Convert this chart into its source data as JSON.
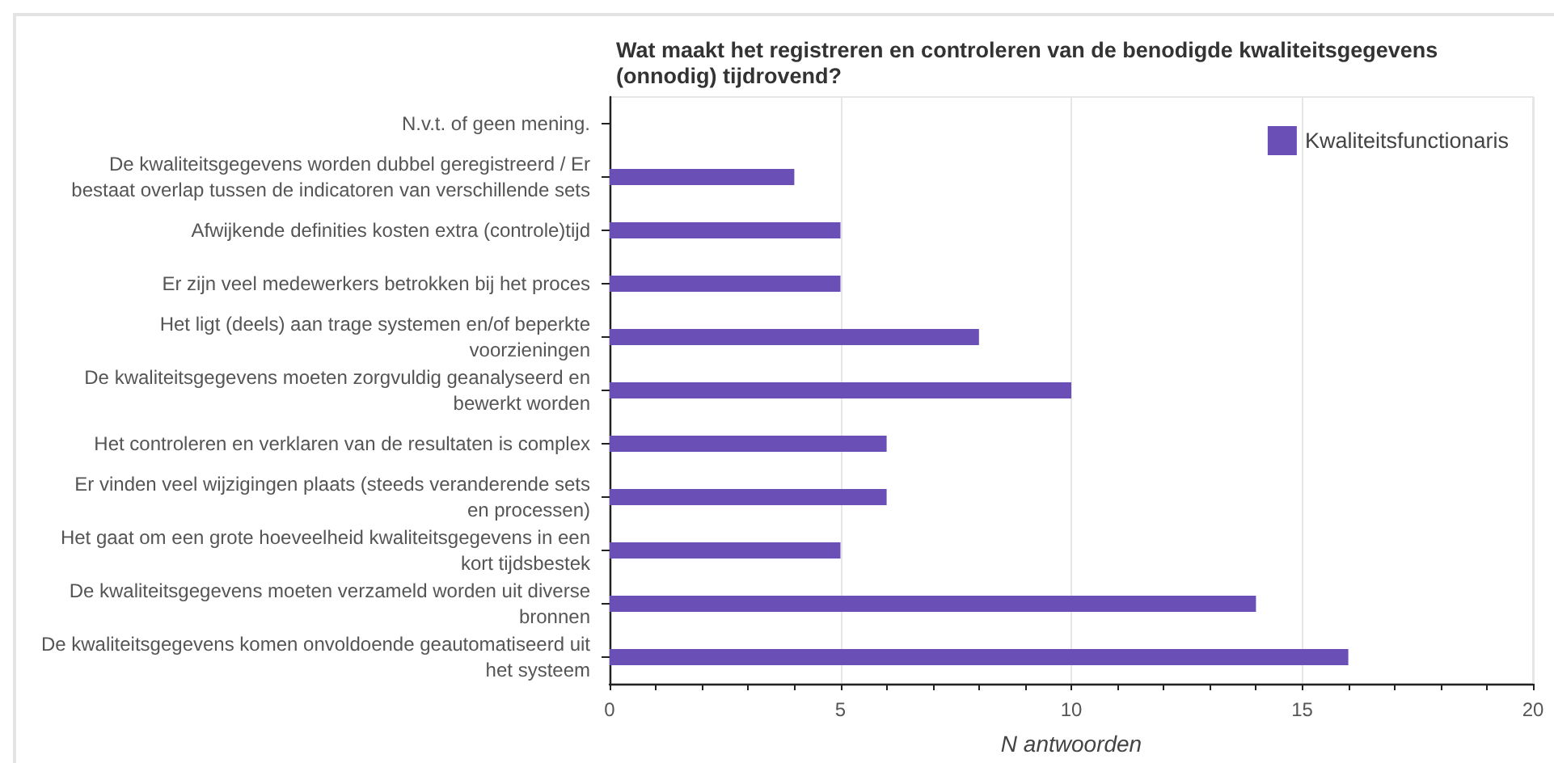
{
  "chart_data": {
    "type": "bar",
    "orientation": "horizontal",
    "title": "Wat maakt het registreren en controleren van de benodigde kwaliteitsgegevens (onnodig) tijdrovend?",
    "xlabel": "N antwoorden",
    "categories": [
      "N.v.t. of geen mening.",
      "De kwaliteitsgegevens worden dubbel geregistreerd / Er bestaat overlap tussen de indicatoren van verschillende sets",
      "Afwijkende definities kosten extra (controle)tijd",
      "Er zijn veel medewerkers betrokken bij het proces",
      "Het ligt (deels) aan trage systemen en/of beperkte voorzieningen",
      "De kwaliteitsgegevens moeten zorgvuldig geanalyseerd en bewerkt worden",
      "Het controleren en verklaren van de resultaten is complex",
      "Er vinden veel wijzigingen plaats (steeds veranderende sets en processen)",
      "Het gaat om een grote hoeveelheid kwaliteitsgegevens in een kort tijdsbestek",
      "De kwaliteitsgegevens moeten verzameld worden uit diverse bronnen",
      "De kwaliteitsgegevens komen onvoldoende geautomatiseerd uit het systeem"
    ],
    "series": [
      {
        "name": "Kwaliteitsfunctionaris",
        "color": "#6a4fb6",
        "values": [
          0,
          4,
          5,
          5,
          8,
          10,
          6,
          6,
          5,
          14,
          16
        ]
      }
    ],
    "xlim": [
      0,
      20
    ],
    "xticks": [
      0,
      5,
      10,
      15,
      20
    ],
    "grid": "x",
    "legend": "top right"
  }
}
